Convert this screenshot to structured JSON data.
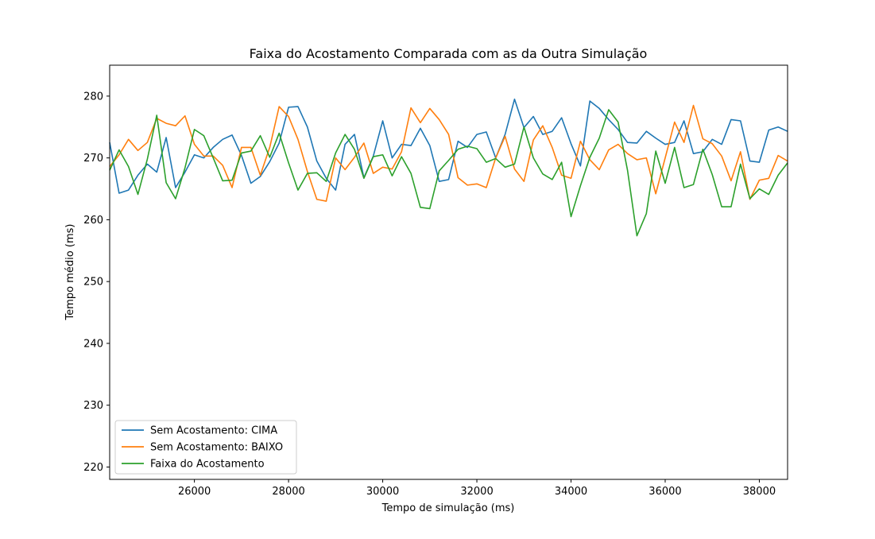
{
  "chart_data": {
    "type": "line",
    "title": "Faixa do Acostamento Comparada com as da Outra Simulação",
    "xlabel": "Tempo de simulação (ms)",
    "ylabel": "Tempo médio (ms)",
    "xlim": [
      24200,
      38600
    ],
    "ylim": [
      218,
      285
    ],
    "xticks": [
      26000,
      28000,
      30000,
      32000,
      34000,
      36000,
      38000
    ],
    "yticks": [
      220,
      230,
      240,
      250,
      260,
      270,
      280
    ],
    "grid": false,
    "legend_position": "lower-left",
    "x": [
      24200,
      24400,
      24600,
      24800,
      25000,
      25200,
      25400,
      25600,
      25800,
      26000,
      26200,
      26400,
      26600,
      26800,
      27000,
      27200,
      27400,
      27600,
      27800,
      28000,
      28200,
      28400,
      28600,
      28800,
      29000,
      29200,
      29400,
      29600,
      29800,
      30000,
      30200,
      30400,
      30600,
      30800,
      31000,
      31200,
      31400,
      31600,
      31800,
      32000,
      32200,
      32400,
      32600,
      32800,
      33000,
      33200,
      33400,
      33600,
      33800,
      34000,
      34200,
      34400,
      34600,
      34800,
      35000,
      35200,
      35400,
      35600,
      35800,
      36000,
      36200,
      36400,
      36600,
      36800,
      37000,
      37200,
      37400,
      37600,
      37800,
      38000,
      38200,
      38400,
      38600
    ],
    "series": [
      {
        "name": "Sem Acostamento: CIMA",
        "color": "#1f77b4",
        "values": [
          272.5,
          264.3,
          264.8,
          267.2,
          269.0,
          267.7,
          273.3,
          265.2,
          267.7,
          270.5,
          270.0,
          271.7,
          273.0,
          273.7,
          270.4,
          265.9,
          267.0,
          269.4,
          272.4,
          278.2,
          278.3,
          275.0,
          269.5,
          266.7,
          264.8,
          272.2,
          273.8,
          266.8,
          270.3,
          276.0,
          270.0,
          272.2,
          272.0,
          274.8,
          272.0,
          266.2,
          266.5,
          272.7,
          271.7,
          273.8,
          274.2,
          270.0,
          273.8,
          279.5,
          274.9,
          276.7,
          273.8,
          274.3,
          276.5,
          272.3,
          268.7,
          279.2,
          278.0,
          276.2,
          274.6,
          272.5,
          272.4,
          274.3,
          273.2,
          272.2,
          272.5,
          276.0,
          270.7,
          271.0,
          273.0,
          272.2,
          276.2,
          276.0,
          269.5,
          269.3,
          274.5,
          275.0,
          274.3
        ]
      },
      {
        "name": "Sem Acostamento: BAIXO",
        "color": "#ff7f0e",
        "values": [
          268.6,
          270.5,
          273.0,
          271.2,
          272.5,
          276.4,
          275.6,
          275.2,
          276.8,
          272.2,
          270.3,
          270.3,
          268.8,
          265.2,
          271.7,
          271.7,
          267.2,
          271.7,
          278.3,
          276.7,
          273.0,
          267.8,
          263.3,
          263.0,
          270.0,
          268.1,
          270.1,
          272.4,
          267.5,
          268.5,
          268.2,
          271.0,
          278.1,
          275.7,
          278.0,
          276.2,
          273.8,
          266.8,
          265.6,
          265.8,
          265.2,
          270.0,
          273.5,
          268.2,
          266.2,
          272.9,
          275.2,
          271.7,
          267.2,
          266.7,
          272.7,
          269.7,
          268.1,
          271.3,
          272.2,
          270.7,
          269.7,
          270.0,
          264.2,
          270.0,
          275.8,
          272.5,
          278.5,
          273.1,
          272.3,
          270.3,
          266.3,
          271.0,
          263.3,
          266.4,
          266.7,
          270.4,
          269.5
        ]
      },
      {
        "name": "Faixa do Acostamento",
        "color": "#2ca02c",
        "values": [
          268.0,
          271.3,
          268.6,
          264.1,
          269.8,
          276.9,
          266.0,
          263.4,
          268.4,
          274.6,
          273.6,
          270.0,
          266.3,
          266.4,
          270.8,
          271.1,
          273.6,
          270.1,
          274.0,
          269.2,
          264.8,
          267.5,
          267.6,
          266.2,
          270.8,
          273.8,
          271.4,
          266.7,
          270.2,
          270.5,
          267.1,
          270.2,
          267.5,
          262.0,
          261.8,
          267.9,
          269.6,
          271.4,
          271.9,
          271.5,
          269.3,
          269.9,
          268.5,
          269.0,
          275.0,
          270.0,
          267.4,
          266.5,
          269.3,
          260.5,
          265.5,
          270.1,
          273.2,
          277.8,
          275.8,
          268.0,
          257.4,
          261.0,
          271.1,
          265.9,
          271.7,
          265.2,
          265.7,
          271.4,
          267.3,
          262.1,
          262.1,
          269.0,
          263.4,
          265.0,
          264.1,
          267.2,
          269.2
        ]
      }
    ]
  }
}
